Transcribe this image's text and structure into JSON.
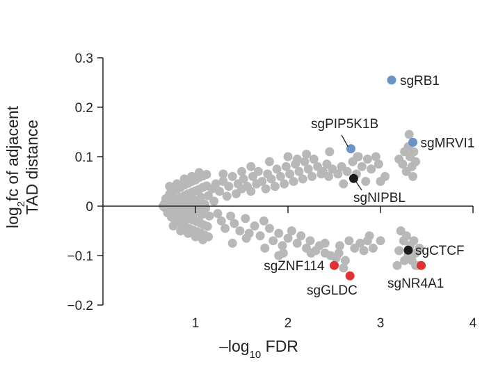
{
  "chart_data": {
    "type": "scatter",
    "xlabel": {
      "main": "–log",
      "sub": "10",
      "after": " FDR"
    },
    "ylabel": {
      "line1_main": "log",
      "line1_sub": "2",
      "line1_after": "fc of adjacent",
      "line2": "TAD distance"
    },
    "xlim": [
      0,
      4
    ],
    "ylim": [
      -0.2,
      0.3
    ],
    "xticks": [
      1,
      2,
      3,
      4
    ],
    "xtick_labels": [
      "1",
      "2",
      "3",
      "4"
    ],
    "yticks": [
      0.3,
      0.2,
      0.1,
      0,
      -0.1,
      -0.2
    ],
    "ytick_labels": [
      "0.3",
      "0.2",
      "0.1",
      "0",
      "−0.1",
      "−0.2"
    ],
    "grid": false,
    "colors": {
      "background_points": "#b8b8b8",
      "blue": "#6a93c8",
      "black": "#1a1a1a",
      "red": "#e03232",
      "axis": "#222222"
    },
    "highlighted": [
      {
        "label": "sgRB1",
        "x": 3.12,
        "y": 0.255,
        "color": "blue"
      },
      {
        "label": "sgMRVI1",
        "x": 3.35,
        "y": 0.129,
        "color": "blue"
      },
      {
        "label": "sgPIP5K1B",
        "x": 2.68,
        "y": 0.116,
        "color": "blue"
      },
      {
        "label": "sgNIPBL",
        "x": 2.71,
        "y": 0.056,
        "color": "black"
      },
      {
        "label": "sgCTCF",
        "x": 3.3,
        "y": -0.089,
        "color": "black"
      },
      {
        "label": "sgZNF114",
        "x": 2.5,
        "y": -0.12,
        "color": "red"
      },
      {
        "label": "sgGLDC",
        "x": 2.67,
        "y": -0.141,
        "color": "red"
      },
      {
        "label": "sgNR4A1",
        "x": 3.44,
        "y": -0.12,
        "color": "red"
      }
    ],
    "points": [
      [
        0.65,
        0.0
      ],
      [
        0.66,
        0.003
      ],
      [
        0.67,
        -0.003
      ],
      [
        0.68,
        0.006
      ],
      [
        0.69,
        -0.006
      ],
      [
        0.7,
        0.002
      ],
      [
        0.71,
        -0.002
      ],
      [
        0.72,
        0.009
      ],
      [
        0.73,
        -0.009
      ],
      [
        0.74,
        0.004
      ],
      [
        0.75,
        -0.004
      ],
      [
        0.76,
        0.012
      ],
      [
        0.77,
        -0.012
      ],
      [
        0.78,
        0.006
      ],
      [
        0.79,
        -0.007
      ],
      [
        0.8,
        0.015
      ],
      [
        0.81,
        -0.015
      ],
      [
        0.82,
        0.009
      ],
      [
        0.83,
        -0.01
      ],
      [
        0.84,
        0.018
      ],
      [
        0.85,
        -0.018
      ],
      [
        0.86,
        0.005
      ],
      [
        0.87,
        -0.005
      ],
      [
        0.88,
        0.021
      ],
      [
        0.89,
        -0.021
      ],
      [
        0.9,
        0.011
      ],
      [
        0.91,
        -0.012
      ],
      [
        0.92,
        0.025
      ],
      [
        0.93,
        -0.025
      ],
      [
        0.94,
        0.002
      ],
      [
        0.95,
        -0.002
      ],
      [
        0.96,
        0.028
      ],
      [
        0.97,
        -0.028
      ],
      [
        0.98,
        0.014
      ],
      [
        0.99,
        -0.014
      ],
      [
        1.0,
        0.031
      ],
      [
        1.01,
        -0.031
      ],
      [
        1.02,
        0.007
      ],
      [
        1.03,
        -0.008
      ],
      [
        1.04,
        0.034
      ],
      [
        1.05,
        -0.034
      ],
      [
        1.06,
        0.018
      ],
      [
        1.07,
        -0.017
      ],
      [
        1.08,
        0.038
      ],
      [
        1.09,
        -0.038
      ],
      [
        1.1,
        0.004
      ],
      [
        1.11,
        -0.004
      ],
      [
        1.12,
        0.041
      ],
      [
        1.13,
        -0.041
      ],
      [
        1.14,
        0.021
      ],
      [
        1.15,
        -0.02
      ],
      [
        0.68,
        0.015
      ],
      [
        0.7,
        -0.014
      ],
      [
        0.72,
        0.024
      ],
      [
        0.74,
        -0.022
      ],
      [
        0.76,
        0.03
      ],
      [
        0.78,
        -0.028
      ],
      [
        0.8,
        0.034
      ],
      [
        0.82,
        -0.033
      ],
      [
        0.84,
        0.038
      ],
      [
        0.86,
        -0.037
      ],
      [
        0.88,
        0.043
      ],
      [
        0.9,
        -0.042
      ],
      [
        0.92,
        0.046
      ],
      [
        0.94,
        -0.046
      ],
      [
        0.96,
        0.05
      ],
      [
        0.98,
        -0.049
      ],
      [
        1.0,
        0.053
      ],
      [
        1.02,
        -0.052
      ],
      [
        1.04,
        0.058
      ],
      [
        1.06,
        -0.055
      ],
      [
        1.08,
        0.061
      ],
      [
        1.1,
        -0.059
      ],
      [
        1.12,
        0.064
      ],
      [
        1.14,
        -0.062
      ],
      [
        0.72,
        0.04
      ],
      [
        0.76,
        -0.04
      ],
      [
        0.8,
        0.045
      ],
      [
        0.84,
        -0.05
      ],
      [
        0.88,
        0.055
      ],
      [
        0.92,
        -0.055
      ],
      [
        0.96,
        0.06
      ],
      [
        1.0,
        -0.062
      ],
      [
        1.04,
        0.068
      ],
      [
        1.08,
        -0.068
      ],
      [
        1.18,
        0.035
      ],
      [
        1.2,
        0.01
      ],
      [
        1.22,
        0.045
      ],
      [
        1.24,
        -0.015
      ],
      [
        1.26,
        0.03
      ],
      [
        1.28,
        -0.03
      ],
      [
        1.3,
        0.05
      ],
      [
        1.32,
        -0.045
      ],
      [
        1.34,
        0.02
      ],
      [
        1.36,
        0.04
      ],
      [
        1.38,
        -0.02
      ],
      [
        1.4,
        0.06
      ],
      [
        1.42,
        -0.035
      ],
      [
        1.44,
        0.025
      ],
      [
        1.46,
        0.045
      ],
      [
        1.48,
        -0.05
      ],
      [
        1.5,
        0.035
      ],
      [
        1.52,
        0.055
      ],
      [
        1.54,
        -0.025
      ],
      [
        1.56,
        0.04
      ],
      [
        1.58,
        -0.055
      ],
      [
        1.6,
        0.03
      ],
      [
        1.62,
        0.06
      ],
      [
        1.64,
        -0.04
      ],
      [
        1.66,
        0.045
      ],
      [
        1.68,
        0.07
      ],
      [
        1.7,
        -0.06
      ],
      [
        1.72,
        0.05
      ],
      [
        1.74,
        -0.03
      ],
      [
        1.76,
        0.035
      ],
      [
        1.78,
        0.065
      ],
      [
        1.8,
        -0.045
      ],
      [
        1.82,
        0.055
      ],
      [
        1.84,
        -0.07
      ],
      [
        1.86,
        0.04
      ],
      [
        1.88,
        0.075
      ],
      [
        1.9,
        -0.055
      ],
      [
        1.92,
        0.06
      ],
      [
        1.94,
        -0.08
      ],
      [
        1.96,
        0.045
      ],
      [
        1.98,
        0.08
      ],
      [
        2.0,
        -0.065
      ],
      [
        2.02,
        0.065
      ],
      [
        2.04,
        -0.05
      ],
      [
        2.06,
        0.05
      ],
      [
        2.08,
        0.085
      ],
      [
        2.1,
        -0.075
      ],
      [
        2.12,
        0.07
      ],
      [
        2.14,
        -0.06
      ],
      [
        2.16,
        0.055
      ],
      [
        2.18,
        0.09
      ],
      [
        2.2,
        -0.085
      ],
      [
        2.22,
        0.075
      ],
      [
        2.24,
        -0.07
      ],
      [
        2.26,
        0.06
      ],
      [
        2.28,
        0.095
      ],
      [
        2.3,
        -0.09
      ],
      [
        2.32,
        0.08
      ],
      [
        2.34,
        -0.08
      ],
      [
        2.36,
        0.065
      ],
      [
        2.38,
        0.07
      ],
      [
        2.4,
        -0.095
      ],
      [
        2.42,
        0.085
      ],
      [
        2.44,
        0.06
      ],
      [
        2.46,
        -0.1
      ],
      [
        2.48,
        0.075
      ],
      [
        2.52,
        -0.105
      ],
      [
        2.54,
        0.065
      ],
      [
        2.56,
        -0.08
      ],
      [
        2.58,
        0.08
      ],
      [
        2.6,
        0.045
      ],
      [
        2.62,
        -0.11
      ],
      [
        2.64,
        0.07
      ],
      [
        2.66,
        -0.07
      ],
      [
        2.7,
        0.09
      ],
      [
        2.72,
        -0.085
      ],
      [
        2.74,
        0.065
      ],
      [
        2.76,
        0.1
      ],
      [
        2.78,
        -0.075
      ],
      [
        2.8,
        0.08
      ],
      [
        2.82,
        -0.09
      ],
      [
        2.84,
        0.05
      ],
      [
        2.86,
        0.095
      ],
      [
        2.88,
        -0.06
      ],
      [
        2.9,
        0.075
      ],
      [
        2.92,
        -0.085
      ],
      [
        2.95,
        0.1
      ],
      [
        2.98,
        0.085
      ],
      [
        3.0,
        -0.07
      ],
      [
        3.05,
        0.06
      ],
      [
        1.3,
        0.065
      ],
      [
        1.4,
        -0.075
      ],
      [
        1.6,
        0.08
      ],
      [
        1.55,
        -0.065
      ],
      [
        1.8,
        0.09
      ],
      [
        1.75,
        -0.085
      ],
      [
        2.0,
        0.1
      ],
      [
        1.95,
        -0.095
      ],
      [
        2.1,
        0.095
      ],
      [
        2.25,
        -0.095
      ],
      [
        2.45,
        0.11
      ],
      [
        2.55,
        -0.095
      ],
      [
        2.75,
        0.1
      ],
      [
        2.86,
        -0.07
      ],
      [
        3.0,
        0.05
      ],
      [
        2.2,
        0.105
      ],
      [
        1.5,
        0.07
      ],
      [
        1.9,
        -0.1
      ],
      [
        2.4,
        -0.075
      ],
      [
        2.6,
        -0.125
      ],
      [
        3.2,
        0.095
      ],
      [
        3.24,
        0.085
      ],
      [
        3.26,
        0.11
      ],
      [
        3.28,
        0.07
      ],
      [
        3.3,
        0.12
      ],
      [
        3.32,
        0.1
      ],
      [
        3.34,
        0.08
      ],
      [
        3.36,
        0.11
      ],
      [
        3.38,
        0.09
      ],
      [
        3.31,
        0.145
      ],
      [
        3.35,
        0.06
      ],
      [
        3.22,
        -0.05
      ],
      [
        3.25,
        -0.07
      ],
      [
        3.28,
        -0.06
      ],
      [
        3.3,
        -0.1
      ],
      [
        3.32,
        -0.08
      ],
      [
        3.34,
        -0.11
      ],
      [
        3.36,
        -0.07
      ],
      [
        3.38,
        -0.095
      ],
      [
        3.4,
        -0.12
      ],
      [
        3.26,
        -0.11
      ],
      [
        3.2,
        -0.09
      ],
      [
        3.42,
        -0.085
      ],
      [
        3.38,
        -0.12
      ],
      [
        3.18,
        -0.12
      ]
    ]
  }
}
